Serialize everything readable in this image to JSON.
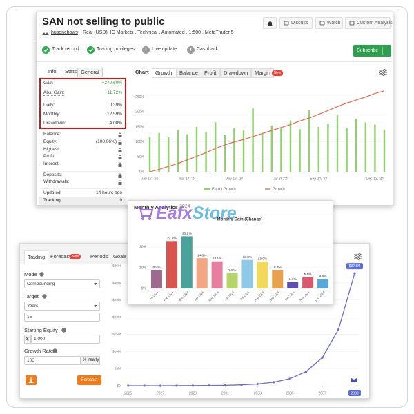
{
  "account": {
    "title": "SAN not selling to public",
    "actions": [
      "Discuss",
      "Watch",
      "Custom Analysis"
    ],
    "owner": "husonchows",
    "details": "Real (USD), IC Markets , Technical , Automated , 1:500 , MetaTrader 5",
    "badges": [
      "Track record",
      "Trading privileges",
      "Live update",
      "Cashback"
    ],
    "subscribe": "Subscribe",
    "info_tabs": [
      "Info",
      "Stats",
      "General"
    ],
    "key_stats": [
      [
        "Gain :",
        "+270.60%"
      ],
      [
        "Abs. Gain:",
        "+11.72%"
      ],
      [
        "Daily:",
        "0.39%"
      ],
      [
        "Monthly:",
        "12.59%"
      ],
      [
        "Drawdown:",
        "4.08%"
      ]
    ],
    "stats": [
      [
        "Balance:"
      ],
      [
        "Equity:",
        "(100.06%)"
      ],
      [
        "Highest:"
      ],
      [
        "Profit:"
      ],
      [
        "Interest:"
      ],
      [
        "Deposits:"
      ],
      [
        "Withdrawals:"
      ]
    ],
    "updated": [
      "Updated",
      "14 hours ago"
    ],
    "tracking": [
      "Tracking",
      "9"
    ],
    "chart_tabs": [
      "Chart",
      "Growth",
      "Balance",
      "Profit",
      "Drawdown",
      "Margin"
    ],
    "new_badge": "New"
  },
  "monthly": {
    "title": "Monthly Analytics",
    "year": "2024",
    "watermark": [
      "Eafx",
      "Store"
    ]
  },
  "forecast": {
    "tabs": [
      "Trading",
      "Forecast",
      "Periods",
      "Goals"
    ],
    "new_badge": "New",
    "mode": {
      "label": "Mode",
      "value": "Compounding"
    },
    "target": {
      "label": "Target",
      "unit": "Years",
      "value": "15"
    },
    "starting_equity": {
      "label": "Starting Equity",
      "prefix": "$",
      "value": "1,000"
    },
    "growth_rate": {
      "label": "Growth Rate",
      "value": "100",
      "suffix": "% Yearly"
    },
    "button": "Forecast"
  },
  "chart_data": [
    {
      "type": "bar_line",
      "categories": [
        "Jan 17, '24",
        null,
        null,
        null,
        "Mar 14, '24",
        null,
        null,
        null,
        null,
        "May 16, '24",
        null,
        null,
        null,
        null,
        "Jul 26, '24",
        null,
        null,
        null,
        "Sep 24, '24",
        null,
        null,
        null,
        null,
        null,
        "Dec 12, '24",
        null
      ],
      "series": [
        {
          "name": "Equity Growth",
          "type": "bar",
          "color": "#8fd16b",
          "values": [
            118,
            130,
            115,
            140,
            126,
            150,
            132,
            165,
            124,
            145,
            138,
            212,
            130,
            155,
            148,
            172,
            142,
            205,
            150,
            160,
            190,
            145,
            178,
            165,
            158,
            140
          ]
        },
        {
          "name": "Growth",
          "type": "line",
          "color": "#e0603c",
          "values": [
            0,
            8,
            18,
            28,
            40,
            52,
            64,
            78,
            90,
            100,
            108,
            118,
            128,
            138,
            148,
            158,
            170,
            180,
            192,
            205,
            218,
            230,
            240,
            250,
            262,
            270.6
          ]
        }
      ],
      "ylim": [
        0,
        300
      ],
      "yticks": [
        {
          "value": 0,
          "label": "0%"
        },
        {
          "value": 50,
          "label": "50%"
        },
        {
          "value": 100,
          "label": "100%"
        },
        {
          "value": 150,
          "label": "150%"
        },
        {
          "value": 200,
          "label": "200%"
        },
        {
          "value": 250,
          "label": "250%"
        }
      ]
    },
    {
      "type": "bar",
      "title": "Monthly Gain (Change)",
      "categories": [
        "Jan 2024",
        "Feb 2024",
        "Mar 2024",
        "Apr 2024",
        "May 2024",
        "Jun 2024",
        "Jul 2024",
        "Aug 2024",
        "Sep 2024",
        "Oct 2024",
        "Nov 2024",
        "Dec 2024"
      ],
      "values": [
        8.9,
        22.9,
        25.2,
        14.6,
        13.1,
        7.5,
        13.8,
        13.0,
        8.7,
        3.1,
        5.5,
        4.6
      ],
      "value_labels": [
        "8.9%",
        "22.9%",
        "25.2%",
        "14.6%",
        "13.1%",
        "7.5%",
        "13.8%",
        "13.0%",
        "8.7%",
        "3.1%",
        "5.5%",
        "4.6%"
      ],
      "colors": [
        "#9e6b8e",
        "#d9534f",
        "#4aa39a",
        "#f4a582",
        "#e87fa0",
        "#b5d56a",
        "#8ec9e8",
        "#f2d95c",
        "#e8a14d",
        "#5b4fb3",
        "#d9596e",
        "#5aa6d8"
      ],
      "ylim": [
        0,
        30
      ],
      "yticks": [
        {
          "value": 0,
          "label": "0%"
        },
        {
          "value": 10,
          "label": "10%"
        },
        {
          "value": 20,
          "label": "20%"
        }
      ]
    },
    {
      "type": "line",
      "x": [
        2025,
        2026,
        2027,
        2028,
        2029,
        2030,
        2031,
        2032,
        2033,
        2034,
        2035,
        2036,
        2037,
        2038,
        2039
      ],
      "values": [
        0.002,
        0.004,
        0.008,
        0.016,
        0.032,
        0.064,
        0.128,
        0.256,
        0.512,
        1.024,
        2.048,
        4.096,
        8.192,
        16.384,
        32.768
      ],
      "value_labels": [
        null,
        null,
        null,
        null,
        null,
        null,
        null,
        null,
        null,
        null,
        null,
        null,
        null,
        null,
        "$32.8M"
      ],
      "color": "#6b6bd6",
      "xlim": [
        2024.8,
        2039.3
      ],
      "xticks": [
        2025,
        2027,
        2029,
        2031,
        2033,
        2035,
        2037,
        2039
      ],
      "ylim": [
        0,
        35
      ],
      "yticks": [
        {
          "value": 0,
          "label": "$0"
        },
        {
          "value": 5,
          "label": "$5M"
        },
        {
          "value": 10,
          "label": "$10M"
        },
        {
          "value": 15,
          "label": "$15M"
        },
        {
          "value": 20,
          "label": "$20M"
        },
        {
          "value": 25,
          "label": "$25M"
        },
        {
          "value": 30,
          "label": "$30M"
        },
        {
          "value": 35,
          "label": "$35M"
        }
      ]
    }
  ]
}
